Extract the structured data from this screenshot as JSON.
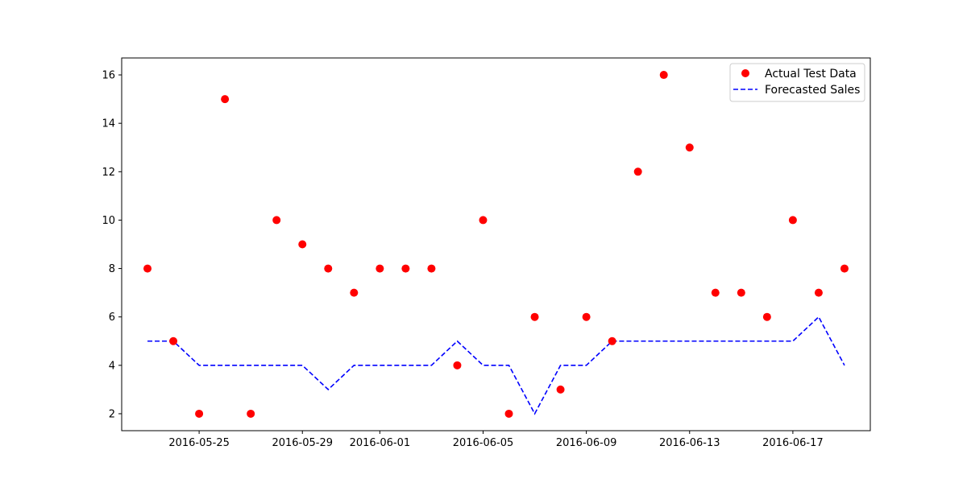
{
  "chart_data": {
    "type": "scatter+line",
    "title": "",
    "xlabel": "",
    "ylabel": "",
    "x_type": "date",
    "xlim": [
      "2016-05-22",
      "2016-06-20"
    ],
    "ylim": [
      1.3,
      16.7
    ],
    "x_ticks": [
      "2016-05-25",
      "2016-05-29",
      "2016-06-01",
      "2016-06-05",
      "2016-06-09",
      "2016-06-13",
      "2016-06-17"
    ],
    "y_ticks": [
      2,
      4,
      6,
      8,
      10,
      12,
      14,
      16
    ],
    "grid": false,
    "legend_position": "top-right",
    "series": [
      {
        "name": "Actual Test Data",
        "kind": "scatter",
        "color": "#ff0000",
        "x": [
          "2016-05-23",
          "2016-05-24",
          "2016-05-25",
          "2016-05-26",
          "2016-05-27",
          "2016-05-28",
          "2016-05-29",
          "2016-05-30",
          "2016-05-31",
          "2016-06-01",
          "2016-06-02",
          "2016-06-03",
          "2016-06-04",
          "2016-06-05",
          "2016-06-06",
          "2016-06-07",
          "2016-06-08",
          "2016-06-09",
          "2016-06-10",
          "2016-06-11",
          "2016-06-12",
          "2016-06-13",
          "2016-06-14",
          "2016-06-15",
          "2016-06-16",
          "2016-06-17",
          "2016-06-18",
          "2016-06-19"
        ],
        "y": [
          8,
          5,
          2,
          15,
          2,
          10,
          9,
          8,
          7,
          8,
          8,
          8,
          4,
          10,
          2,
          6,
          3,
          6,
          5,
          12,
          16,
          13,
          7,
          7,
          6,
          10,
          7,
          8
        ]
      },
      {
        "name": "Forecasted Sales",
        "kind": "line",
        "line_style": "dashed",
        "color": "#0000ff",
        "x": [
          "2016-05-23",
          "2016-05-24",
          "2016-05-25",
          "2016-05-26",
          "2016-05-27",
          "2016-05-28",
          "2016-05-29",
          "2016-05-30",
          "2016-05-31",
          "2016-06-01",
          "2016-06-02",
          "2016-06-03",
          "2016-06-04",
          "2016-06-05",
          "2016-06-06",
          "2016-06-07",
          "2016-06-08",
          "2016-06-09",
          "2016-06-10",
          "2016-06-11",
          "2016-06-12",
          "2016-06-13",
          "2016-06-14",
          "2016-06-15",
          "2016-06-16",
          "2016-06-17",
          "2016-06-18",
          "2016-06-19"
        ],
        "y": [
          5,
          5,
          4,
          4,
          4,
          4,
          4,
          3,
          4,
          4,
          4,
          4,
          5,
          4,
          4,
          2,
          4,
          4,
          5,
          5,
          5,
          5,
          5,
          5,
          5,
          5,
          6,
          4
        ]
      }
    ]
  }
}
